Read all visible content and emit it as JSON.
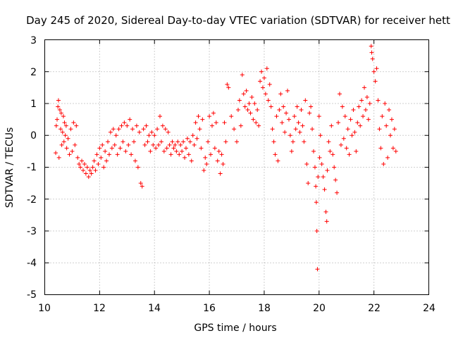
{
  "chart_data": {
    "type": "scatter",
    "title": "Day 245 of 2020, Sidereal Day-to-day VTEC variation (SDTVAR) for receiver hett",
    "xlabel": "GPS time / hours",
    "ylabel": "SDTVAR / TECUs",
    "xlim": [
      10,
      24
    ],
    "ylim": [
      -5,
      3
    ],
    "xticks": [
      "10",
      "12",
      "14",
      "16",
      "18",
      "20",
      "22",
      "24"
    ],
    "yticks": [
      "3",
      "2",
      "1",
      "0",
      "-1",
      "-2",
      "-3",
      "-4",
      "-5"
    ],
    "grid": true,
    "marker": "+",
    "color": "#ff0000",
    "series": [
      {
        "name": "SDTVAR",
        "points": [
          [
            10.4,
            -0.55
          ],
          [
            10.42,
            0.3
          ],
          [
            10.45,
            0.5
          ],
          [
            10.48,
            0.9
          ],
          [
            10.5,
            1.1
          ],
          [
            10.52,
            -0.7
          ],
          [
            10.55,
            0.8
          ],
          [
            10.58,
            0.2
          ],
          [
            10.6,
            0.7
          ],
          [
            10.62,
            -0.3
          ],
          [
            10.65,
            0.1
          ],
          [
            10.68,
            0.6
          ],
          [
            10.7,
            -0.2
          ],
          [
            10.72,
            0.4
          ],
          [
            10.75,
            0.0
          ],
          [
            10.78,
            0.3
          ],
          [
            10.8,
            -0.4
          ],
          [
            10.85,
            -0.1
          ],
          [
            10.9,
            -0.6
          ],
          [
            10.95,
            0.2
          ],
          [
            11.0,
            -0.5
          ],
          [
            11.05,
            0.4
          ],
          [
            11.1,
            -0.3
          ],
          [
            11.15,
            0.3
          ],
          [
            11.2,
            -0.7
          ],
          [
            11.25,
            -0.9
          ],
          [
            11.3,
            -1.0
          ],
          [
            11.35,
            -0.8
          ],
          [
            11.4,
            -1.1
          ],
          [
            11.45,
            -0.9
          ],
          [
            11.5,
            -1.2
          ],
          [
            11.55,
            -1.0
          ],
          [
            11.6,
            -1.3
          ],
          [
            11.65,
            -1.1
          ],
          [
            11.7,
            -1.2
          ],
          [
            11.75,
            -1.0
          ],
          [
            11.8,
            -0.8
          ],
          [
            11.85,
            -1.1
          ],
          [
            11.9,
            -0.6
          ],
          [
            11.95,
            -0.9
          ],
          [
            12.0,
            -0.4
          ],
          [
            12.05,
            -0.7
          ],
          [
            12.1,
            -0.3
          ],
          [
            12.15,
            -1.0
          ],
          [
            12.2,
            -0.5
          ],
          [
            12.25,
            -0.8
          ],
          [
            12.3,
            -0.2
          ],
          [
            12.35,
            -0.6
          ],
          [
            12.4,
            0.1
          ],
          [
            12.45,
            -0.4
          ],
          [
            12.5,
            0.2
          ],
          [
            12.55,
            -0.3
          ],
          [
            12.6,
            0.0
          ],
          [
            12.65,
            -0.6
          ],
          [
            12.7,
            0.2
          ],
          [
            12.75,
            -0.4
          ],
          [
            12.8,
            0.3
          ],
          [
            12.85,
            -0.2
          ],
          [
            12.9,
            0.4
          ],
          [
            12.95,
            -0.5
          ],
          [
            13.0,
            0.3
          ],
          [
            13.05,
            -0.3
          ],
          [
            13.1,
            0.5
          ],
          [
            13.15,
            -0.6
          ],
          [
            13.2,
            0.2
          ],
          [
            13.25,
            -0.2
          ],
          [
            13.3,
            -0.8
          ],
          [
            13.35,
            0.3
          ],
          [
            13.4,
            -1.0
          ],
          [
            13.45,
            0.1
          ],
          [
            13.5,
            -1.5
          ],
          [
            13.55,
            -1.6
          ],
          [
            13.6,
            0.2
          ],
          [
            13.65,
            -0.3
          ],
          [
            13.7,
            0.3
          ],
          [
            13.75,
            -0.2
          ],
          [
            13.8,
            0.0
          ],
          [
            13.85,
            -0.5
          ],
          [
            13.9,
            0.1
          ],
          [
            13.95,
            -0.3
          ],
          [
            14.0,
            0.0
          ],
          [
            14.05,
            -0.4
          ],
          [
            14.1,
            0.2
          ],
          [
            14.15,
            -0.3
          ],
          [
            14.2,
            0.6
          ],
          [
            14.25,
            -0.2
          ],
          [
            14.3,
            0.3
          ],
          [
            14.35,
            -0.5
          ],
          [
            14.4,
            0.2
          ],
          [
            14.45,
            -0.4
          ],
          [
            14.5,
            0.1
          ],
          [
            14.55,
            -0.3
          ],
          [
            14.6,
            -0.6
          ],
          [
            14.65,
            -0.2
          ],
          [
            14.7,
            -0.4
          ],
          [
            14.75,
            -0.3
          ],
          [
            14.8,
            -0.5
          ],
          [
            14.85,
            -0.2
          ],
          [
            14.9,
            -0.6
          ],
          [
            14.95,
            -0.3
          ],
          [
            15.0,
            -0.5
          ],
          [
            15.05,
            -0.2
          ],
          [
            15.1,
            -0.7
          ],
          [
            15.15,
            -0.4
          ],
          [
            15.2,
            -0.1
          ],
          [
            15.25,
            -0.6
          ],
          [
            15.3,
            -0.2
          ],
          [
            15.35,
            -0.8
          ],
          [
            15.4,
            0.0
          ],
          [
            15.45,
            -0.3
          ],
          [
            15.5,
            0.4
          ],
          [
            15.55,
            -0.1
          ],
          [
            15.6,
            0.6
          ],
          [
            15.65,
            0.2
          ],
          [
            15.7,
            -0.4
          ],
          [
            15.75,
            0.5
          ],
          [
            15.8,
            -1.1
          ],
          [
            15.85,
            -0.7
          ],
          [
            15.9,
            -0.9
          ],
          [
            15.95,
            -0.2
          ],
          [
            16.0,
            0.6
          ],
          [
            16.05,
            -0.6
          ],
          [
            16.1,
            0.3
          ],
          [
            16.15,
            0.7
          ],
          [
            16.2,
            -0.4
          ],
          [
            16.25,
            0.4
          ],
          [
            16.3,
            -0.8
          ],
          [
            16.35,
            -0.5
          ],
          [
            16.4,
            -1.2
          ],
          [
            16.45,
            -0.6
          ],
          [
            16.5,
            -0.9
          ],
          [
            16.55,
            0.4
          ],
          [
            16.6,
            -0.2
          ],
          [
            16.65,
            1.6
          ],
          [
            16.7,
            1.5
          ],
          [
            16.8,
            0.6
          ],
          [
            16.9,
            0.2
          ],
          [
            17.0,
            -0.2
          ],
          [
            17.05,
            0.8
          ],
          [
            17.1,
            1.1
          ],
          [
            17.15,
            0.3
          ],
          [
            17.2,
            1.9
          ],
          [
            17.25,
            1.3
          ],
          [
            17.3,
            0.9
          ],
          [
            17.35,
            1.4
          ],
          [
            17.4,
            0.8
          ],
          [
            17.45,
            1.0
          ],
          [
            17.5,
            0.7
          ],
          [
            17.55,
            1.2
          ],
          [
            17.6,
            0.5
          ],
          [
            17.65,
            1.0
          ],
          [
            17.7,
            0.4
          ],
          [
            17.75,
            0.8
          ],
          [
            17.8,
            0.3
          ],
          [
            17.85,
            1.7
          ],
          [
            17.9,
            2.0
          ],
          [
            17.95,
            1.5
          ],
          [
            18.0,
            1.8
          ],
          [
            18.05,
            1.3
          ],
          [
            18.1,
            2.1
          ],
          [
            18.15,
            1.1
          ],
          [
            18.2,
            1.6
          ],
          [
            18.25,
            0.9
          ],
          [
            18.3,
            0.2
          ],
          [
            18.35,
            -0.2
          ],
          [
            18.4,
            -0.6
          ],
          [
            18.45,
            0.6
          ],
          [
            18.5,
            -0.8
          ],
          [
            18.55,
            0.8
          ],
          [
            18.6,
            1.3
          ],
          [
            18.65,
            0.4
          ],
          [
            18.7,
            0.9
          ],
          [
            18.75,
            0.1
          ],
          [
            18.8,
            0.7
          ],
          [
            18.85,
            1.4
          ],
          [
            18.9,
            0.5
          ],
          [
            18.95,
            0.0
          ],
          [
            19.0,
            -0.5
          ],
          [
            19.05,
            -0.2
          ],
          [
            19.1,
            0.6
          ],
          [
            19.15,
            0.2
          ],
          [
            19.2,
            0.9
          ],
          [
            19.25,
            0.4
          ],
          [
            19.3,
            0.1
          ],
          [
            19.35,
            0.8
          ],
          [
            19.4,
            0.3
          ],
          [
            19.45,
            -0.2
          ],
          [
            19.5,
            1.1
          ],
          [
            19.55,
            -0.9
          ],
          [
            19.6,
            -1.5
          ],
          [
            19.65,
            0.7
          ],
          [
            19.7,
            0.9
          ],
          [
            19.75,
            0.2
          ],
          [
            19.8,
            -0.5
          ],
          [
            19.85,
            -1.0
          ],
          [
            19.88,
            -1.6
          ],
          [
            19.9,
            -2.1
          ],
          [
            19.92,
            -3.0
          ],
          [
            19.94,
            -4.2
          ],
          [
            19.96,
            -1.3
          ],
          [
            20.0,
            0.6
          ],
          [
            20.02,
            -0.7
          ],
          [
            20.05,
            0.0
          ],
          [
            20.1,
            -0.9
          ],
          [
            20.15,
            -1.3
          ],
          [
            20.2,
            -1.7
          ],
          [
            20.25,
            -2.4
          ],
          [
            20.28,
            -2.7
          ],
          [
            20.3,
            -1.1
          ],
          [
            20.35,
            -0.2
          ],
          [
            20.4,
            -0.5
          ],
          [
            20.45,
            0.3
          ],
          [
            20.5,
            -0.6
          ],
          [
            20.55,
            -1.0
          ],
          [
            20.6,
            -1.4
          ],
          [
            20.65,
            -1.8
          ],
          [
            20.7,
            0.4
          ],
          [
            20.75,
            1.3
          ],
          [
            20.8,
            -0.3
          ],
          [
            20.85,
            0.9
          ],
          [
            20.9,
            -0.1
          ],
          [
            20.95,
            0.6
          ],
          [
            21.0,
            -0.4
          ],
          [
            21.05,
            0.2
          ],
          [
            21.1,
            -0.6
          ],
          [
            21.15,
            0.5
          ],
          [
            21.2,
            0.0
          ],
          [
            21.25,
            0.8
          ],
          [
            21.3,
            0.1
          ],
          [
            21.35,
            -0.5
          ],
          [
            21.4,
            0.4
          ],
          [
            21.45,
            0.9
          ],
          [
            21.5,
            0.3
          ],
          [
            21.55,
            1.1
          ],
          [
            21.6,
            0.6
          ],
          [
            21.65,
            1.5
          ],
          [
            21.7,
            0.8
          ],
          [
            21.75,
            1.2
          ],
          [
            21.8,
            0.5
          ],
          [
            21.85,
            1.0
          ],
          [
            21.9,
            2.8
          ],
          [
            21.92,
            2.6
          ],
          [
            21.95,
            2.4
          ],
          [
            22.0,
            2.0
          ],
          [
            22.05,
            1.7
          ],
          [
            22.1,
            2.1
          ],
          [
            22.15,
            1.1
          ],
          [
            22.2,
            0.2
          ],
          [
            22.25,
            -0.4
          ],
          [
            22.3,
            0.6
          ],
          [
            22.35,
            -0.9
          ],
          [
            22.4,
            1.0
          ],
          [
            22.45,
            0.3
          ],
          [
            22.5,
            -0.7
          ],
          [
            22.55,
            0.8
          ],
          [
            22.6,
            0.0
          ],
          [
            22.65,
            0.5
          ],
          [
            22.7,
            -0.4
          ],
          [
            22.75,
            0.2
          ],
          [
            22.8,
            -0.5
          ]
        ]
      }
    ]
  }
}
